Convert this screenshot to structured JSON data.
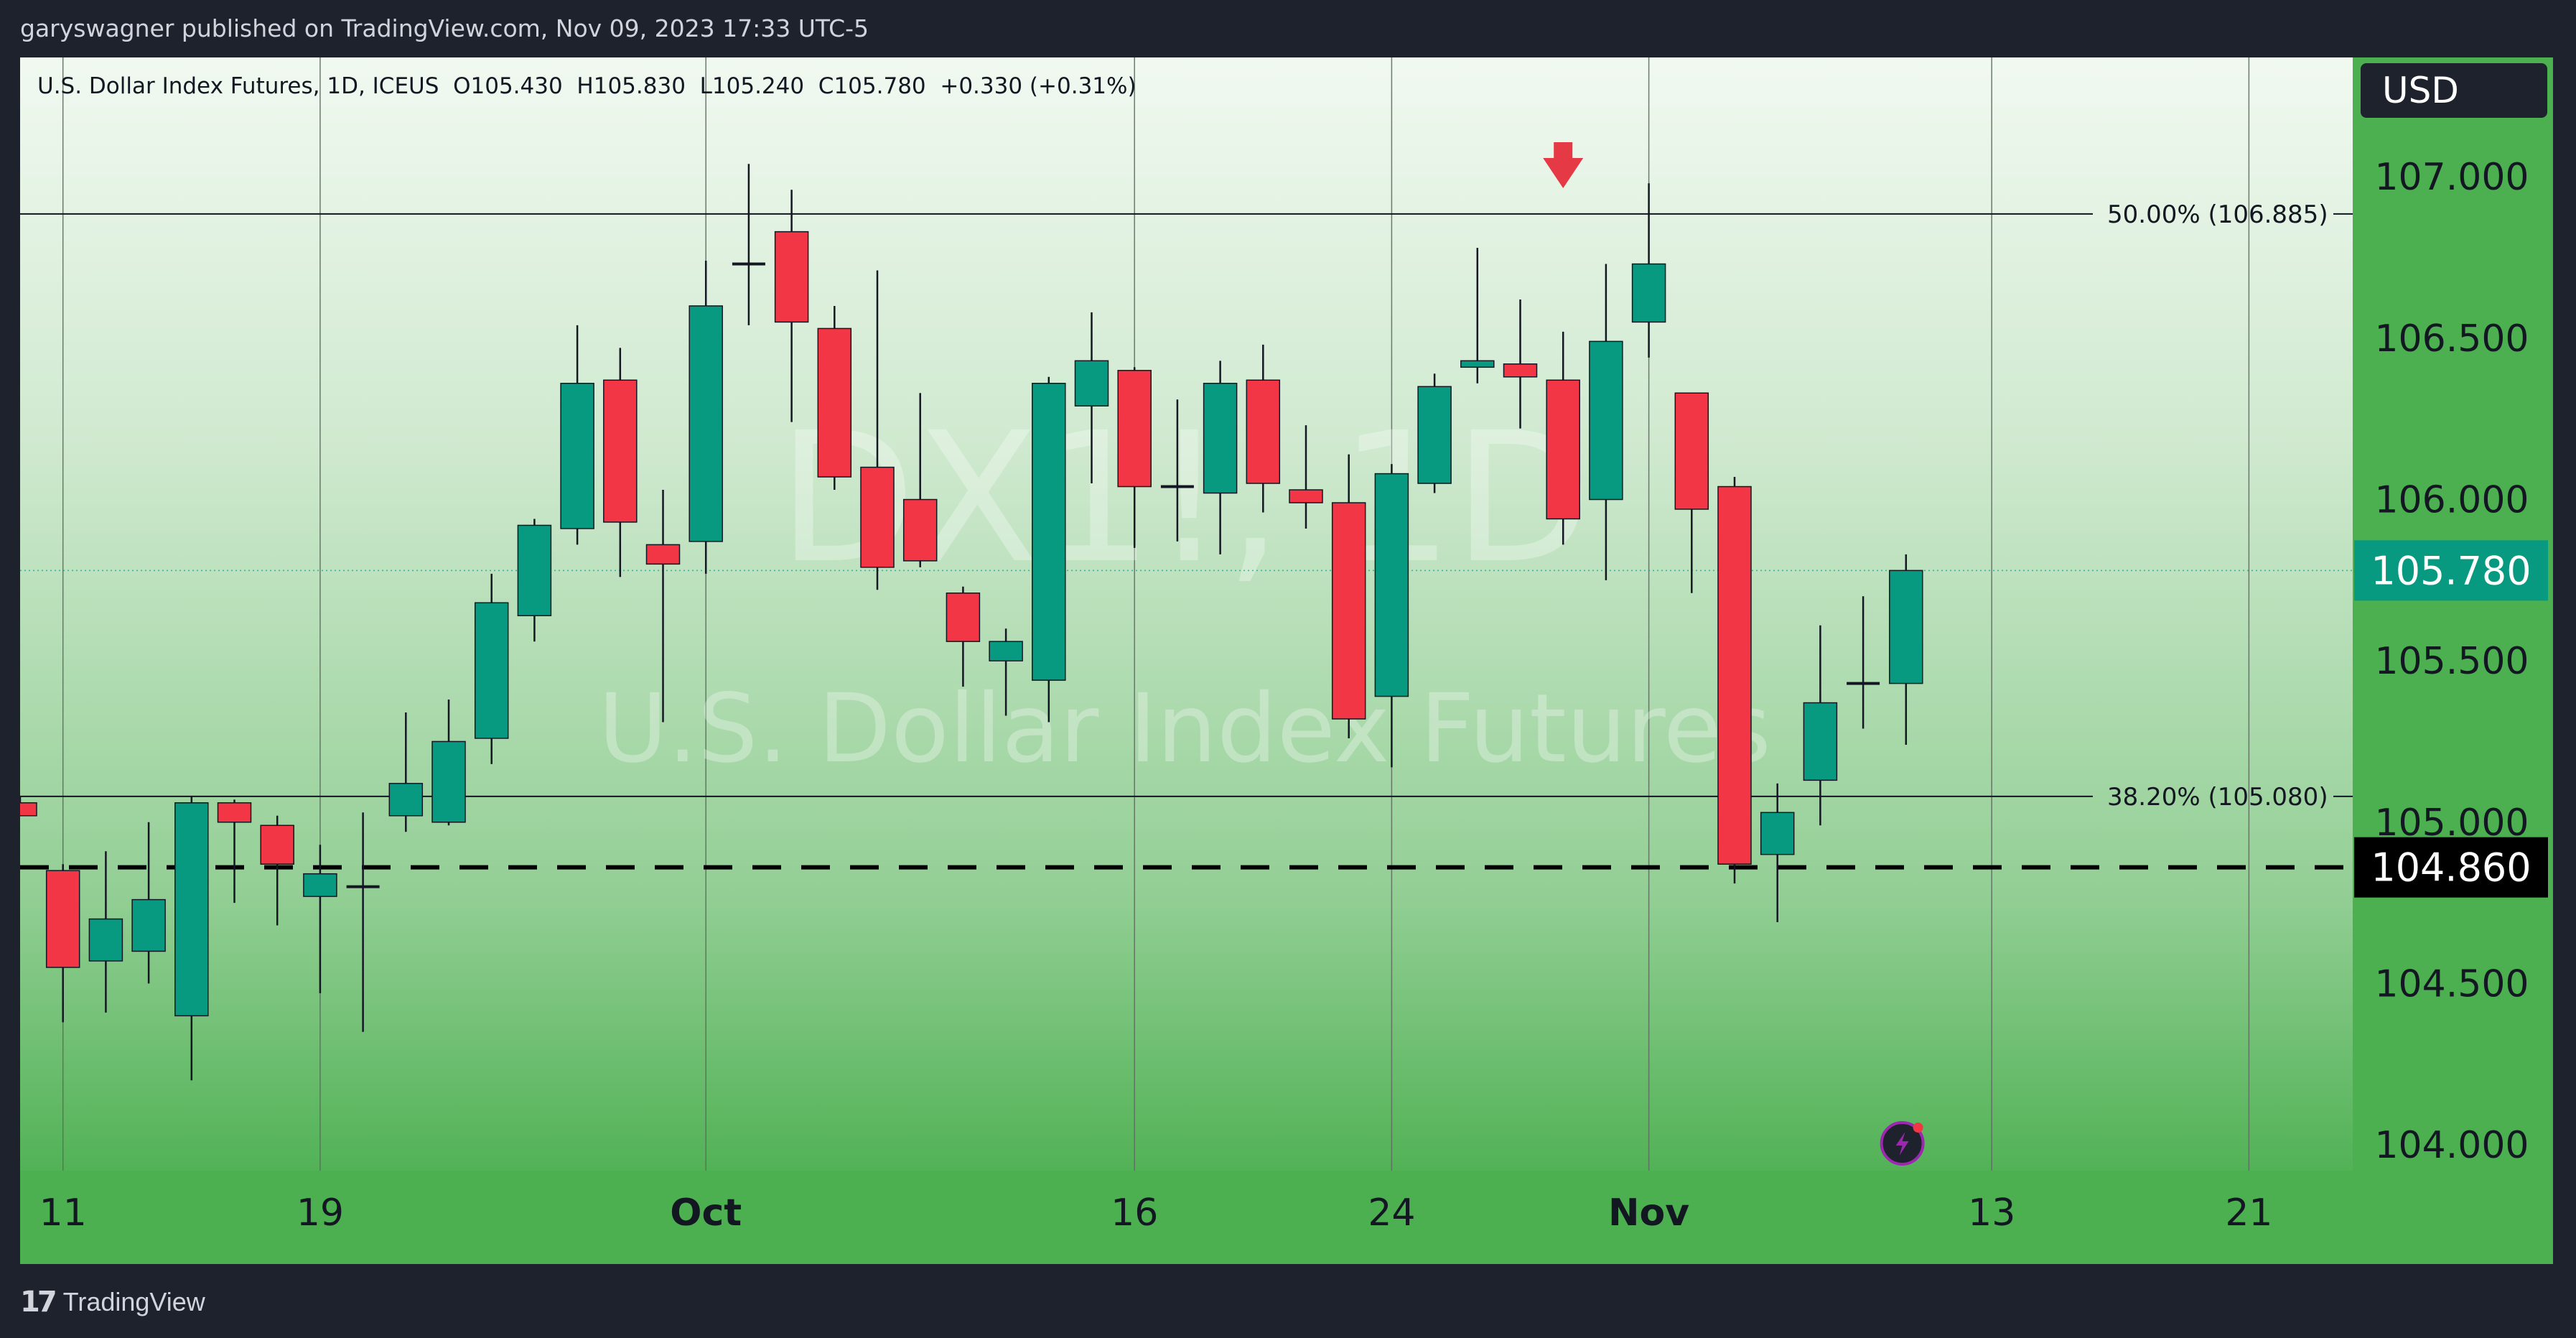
{
  "header": {
    "publisher_line": "garyswagner published on TradingView.com, Nov 09, 2023 17:33 UTC-5"
  },
  "legend": {
    "text": "U.S. Dollar Index Futures, 1D, ICEUS  O105.430  H105.830  L105.240  C105.780  +0.330 (+0.31%)"
  },
  "watermark": {
    "symbol": "DX1!, 1D",
    "name": "U.S. Dollar Index Futures"
  },
  "footer": {
    "brand_mark": "17",
    "brand_name": "TradingView"
  },
  "chart_data": {
    "type": "candlestick",
    "currency": "USD",
    "ylim": [
      103.92,
      107.37
    ],
    "y_ticks": [
      "104.000",
      "104.500",
      "105.000",
      "105.500",
      "106.000",
      "106.500",
      "107.000"
    ],
    "x_ticks": [
      {
        "label": "11",
        "bar": 1,
        "bold": false
      },
      {
        "label": "19",
        "bar": 7,
        "bold": false
      },
      {
        "label": "Oct",
        "bar": 16,
        "bold": true
      },
      {
        "label": "16",
        "bar": 26,
        "bold": false
      },
      {
        "label": "24",
        "bar": 32,
        "bold": false
      },
      {
        "label": "Nov",
        "bar": 38,
        "bold": true
      },
      {
        "label": "13",
        "bar": 46,
        "bold": false
      },
      {
        "label": "21",
        "bar": 52,
        "bold": false
      }
    ],
    "colors": {
      "up": "#089981",
      "down": "#f23645",
      "wick": "#131722"
    },
    "candles": [
      {
        "o": 105.06,
        "h": 105.08,
        "l": 105.02,
        "c": 105.02
      },
      {
        "o": 104.85,
        "h": 104.87,
        "l": 104.38,
        "c": 104.55
      },
      {
        "o": 104.57,
        "h": 104.91,
        "l": 104.41,
        "c": 104.7
      },
      {
        "o": 104.6,
        "h": 105.0,
        "l": 104.5,
        "c": 104.76
      },
      {
        "o": 104.4,
        "h": 105.08,
        "l": 104.2,
        "c": 105.06
      },
      {
        "o": 105.06,
        "h": 105.07,
        "l": 104.75,
        "c": 105.0
      },
      {
        "o": 104.99,
        "h": 105.02,
        "l": 104.68,
        "c": 104.87
      },
      {
        "o": 104.77,
        "h": 104.93,
        "l": 104.47,
        "c": 104.84
      },
      {
        "o": 104.8,
        "h": 105.03,
        "l": 104.35,
        "c": 104.8
      },
      {
        "o": 105.02,
        "h": 105.34,
        "l": 104.97,
        "c": 105.12
      },
      {
        "o": 105.0,
        "h": 105.38,
        "l": 104.99,
        "c": 105.25
      },
      {
        "o": 105.26,
        "h": 105.77,
        "l": 105.18,
        "c": 105.68
      },
      {
        "o": 105.64,
        "h": 105.94,
        "l": 105.56,
        "c": 105.92
      },
      {
        "o": 105.91,
        "h": 106.54,
        "l": 105.86,
        "c": 106.36
      },
      {
        "o": 106.37,
        "h": 106.47,
        "l": 105.76,
        "c": 105.93
      },
      {
        "o": 105.86,
        "h": 106.03,
        "l": 105.31,
        "c": 105.8
      },
      {
        "o": 105.87,
        "h": 106.74,
        "l": 105.77,
        "c": 106.6
      },
      {
        "o": 106.73,
        "h": 107.04,
        "l": 106.54,
        "c": 106.73
      },
      {
        "o": 106.83,
        "h": 106.96,
        "l": 106.24,
        "c": 106.55
      },
      {
        "o": 106.53,
        "h": 106.6,
        "l": 106.03,
        "c": 106.07
      },
      {
        "o": 106.1,
        "h": 106.71,
        "l": 105.72,
        "c": 105.79
      },
      {
        "o": 106.0,
        "h": 106.33,
        "l": 105.79,
        "c": 105.81
      },
      {
        "o": 105.71,
        "h": 105.73,
        "l": 105.42,
        "c": 105.56
      },
      {
        "o": 105.5,
        "h": 105.6,
        "l": 105.33,
        "c": 105.56
      },
      {
        "o": 105.44,
        "h": 106.38,
        "l": 105.31,
        "c": 106.36
      },
      {
        "o": 106.29,
        "h": 106.58,
        "l": 106.05,
        "c": 106.43
      },
      {
        "o": 106.4,
        "h": 106.41,
        "l": 105.85,
        "c": 106.04
      },
      {
        "o": 106.04,
        "h": 106.31,
        "l": 105.87,
        "c": 106.04
      },
      {
        "o": 106.02,
        "h": 106.43,
        "l": 105.83,
        "c": 106.36
      },
      {
        "o": 106.37,
        "h": 106.48,
        "l": 105.96,
        "c": 106.05
      },
      {
        "o": 106.03,
        "h": 106.23,
        "l": 105.91,
        "c": 105.99
      },
      {
        "o": 105.99,
        "h": 106.14,
        "l": 105.26,
        "c": 105.32
      },
      {
        "o": 105.39,
        "h": 106.11,
        "l": 105.17,
        "c": 106.08
      },
      {
        "o": 106.05,
        "h": 106.39,
        "l": 106.02,
        "c": 106.35
      },
      {
        "o": 106.41,
        "h": 106.78,
        "l": 106.36,
        "c": 106.43
      },
      {
        "o": 106.42,
        "h": 106.62,
        "l": 106.22,
        "c": 106.38
      },
      {
        "o": 106.37,
        "h": 106.52,
        "l": 105.86,
        "c": 105.94
      },
      {
        "o": 106.0,
        "h": 106.73,
        "l": 105.75,
        "c": 106.49
      },
      {
        "o": 106.55,
        "h": 106.98,
        "l": 106.44,
        "c": 106.73
      },
      {
        "o": 106.33,
        "h": 106.33,
        "l": 105.71,
        "c": 105.97
      },
      {
        "o": 106.04,
        "h": 106.07,
        "l": 104.81,
        "c": 104.87
      },
      {
        "o": 104.9,
        "h": 105.12,
        "l": 104.69,
        "c": 105.03
      },
      {
        "o": 105.13,
        "h": 105.61,
        "l": 104.99,
        "c": 105.37
      },
      {
        "o": 105.43,
        "h": 105.7,
        "l": 105.29,
        "c": 105.43
      },
      {
        "o": 105.43,
        "h": 105.83,
        "l": 105.24,
        "c": 105.78
      }
    ],
    "levels": [
      {
        "label": "50.00% (106.885)",
        "value": 106.885
      },
      {
        "label": "38.20% (105.080)",
        "value": 105.08
      }
    ],
    "last_price": {
      "value": 105.78,
      "label": "105.780",
      "color": "#089981"
    },
    "dashed_level": {
      "value": 104.86,
      "label": "104.860",
      "color": "#000000"
    },
    "marker": {
      "type": "down-arrow",
      "bar": 36,
      "color": "#e53946"
    }
  }
}
